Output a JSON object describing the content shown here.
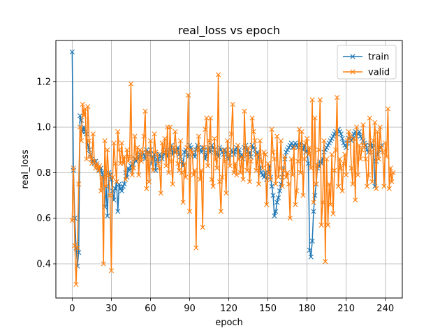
{
  "chart_data": {
    "type": "line",
    "title": "real_loss vs epoch",
    "xlabel": "epoch",
    "ylabel": "real_loss",
    "xlim": [
      -12.5,
      253
    ],
    "ylim": [
      0.25,
      1.38
    ],
    "xticks": [
      0,
      30,
      60,
      90,
      120,
      150,
      180,
      210,
      240
    ],
    "yticks": [
      0.4,
      0.6,
      0.8,
      1.0,
      1.2
    ],
    "ytick_labels": [
      "0.4",
      "0.6",
      "0.8",
      "1.0",
      "1.2"
    ],
    "grid": true,
    "legend_position": "top-right",
    "marker": "x",
    "series": [
      {
        "name": "train",
        "color": "#1f77b4",
        "values": [
          1.33,
          0.81,
          0.6,
          0.47,
          0.39,
          0.45,
          1.05,
          1.03,
          0.98,
          1.0,
          0.98,
          0.97,
          0.92,
          0.9,
          0.88,
          0.86,
          0.85,
          0.84,
          0.85,
          0.83,
          0.82,
          0.81,
          0.82,
          0.8,
          0.78,
          0.65,
          0.74,
          0.61,
          0.8,
          0.79,
          0.77,
          0.72,
          0.68,
          0.73,
          0.76,
          0.63,
          0.75,
          0.73,
          0.72,
          0.74,
          0.75,
          0.8,
          0.78,
          0.82,
          0.81,
          0.83,
          0.84,
          0.82,
          0.86,
          0.85,
          0.87,
          0.86,
          0.88,
          0.87,
          0.89,
          0.88,
          0.86,
          0.9,
          0.88,
          0.89,
          0.9,
          0.84,
          0.87,
          0.88,
          0.81,
          0.86,
          0.85,
          0.88,
          0.87,
          0.86,
          0.89,
          0.88,
          0.9,
          0.87,
          0.89,
          0.9,
          0.92,
          0.88,
          0.91,
          0.89,
          0.9,
          0.91,
          0.88,
          0.87,
          0.85,
          0.83,
          0.89,
          0.9,
          0.88,
          0.87,
          0.92,
          0.91,
          0.89,
          0.88,
          0.87,
          0.9,
          0.92,
          0.91,
          0.9,
          0.89,
          0.91,
          0.9,
          0.86,
          0.88,
          0.9,
          0.91,
          0.89,
          0.92,
          0.91,
          0.9,
          0.88,
          0.89,
          0.87,
          0.91,
          0.9,
          0.89,
          0.88,
          0.9,
          0.89,
          0.87,
          0.86,
          0.88,
          0.9,
          0.89,
          0.88,
          0.9,
          0.91,
          0.89,
          0.9,
          0.87,
          0.88,
          0.86,
          0.91,
          0.92,
          0.9,
          0.88,
          0.89,
          0.87,
          0.92,
          0.91,
          0.9,
          0.88,
          0.89,
          0.87,
          0.82,
          0.8,
          0.79,
          0.78,
          0.8,
          0.77,
          0.8,
          0.83,
          0.78,
          0.74,
          0.7,
          0.61,
          0.63,
          0.67,
          0.69,
          0.72,
          0.75,
          0.78,
          0.82,
          0.86,
          0.89,
          0.9,
          0.91,
          0.92,
          0.93,
          0.91,
          0.92,
          0.93,
          0.92,
          0.91,
          0.92,
          0.93,
          0.91,
          0.9,
          0.92,
          0.89,
          0.9,
          0.84,
          0.46,
          0.43,
          0.5,
          0.63,
          0.7,
          0.75,
          0.82,
          0.83,
          0.85,
          0.84,
          0.86,
          0.89,
          0.9,
          0.91,
          0.92,
          0.93,
          0.94,
          0.95,
          0.96,
          0.97,
          0.98,
          0.97,
          0.99,
          0.98,
          0.97,
          0.95,
          0.93,
          0.92,
          0.91,
          0.93,
          0.95,
          0.96,
          0.94,
          0.95,
          0.97,
          0.98,
          0.96,
          0.97,
          0.98,
          0.96,
          0.95,
          0.94,
          0.93,
          0.92,
          0.9,
          0.89,
          0.92,
          0.93,
          0.91,
          0.92,
          0.74,
          0.85,
          0.88,
          0.9,
          0.91,
          0.92
        ]
      },
      {
        "name": "valid",
        "color": "#ff7f0e",
        "values": [
          0.59,
          0.82,
          0.48,
          0.31,
          0.47,
          0.75,
          1.0,
          0.94,
          1.1,
          1.05,
          1.08,
          0.86,
          1.09,
          0.94,
          0.87,
          0.84,
          0.97,
          0.85,
          0.82,
          0.84,
          0.81,
          0.83,
          0.72,
          0.78,
          0.4,
          0.94,
          0.74,
          0.9,
          0.79,
          0.7,
          0.37,
          0.78,
          0.93,
          0.84,
          0.76,
          0.98,
          0.9,
          0.84,
          0.93,
          0.84,
          0.87,
          0.77,
          0.9,
          0.85,
          0.87,
          1.19,
          0.79,
          0.82,
          0.96,
          0.86,
          0.91,
          0.79,
          0.9,
          0.85,
          0.89,
          0.96,
          1.07,
          0.73,
          0.89,
          0.76,
          0.94,
          0.86,
          0.81,
          0.97,
          0.89,
          0.88,
          0.84,
          0.82,
          0.71,
          0.93,
          0.89,
          0.95,
          0.83,
          1.0,
          0.8,
          1.0,
          0.85,
          0.75,
          0.91,
          0.98,
          0.89,
          0.84,
          0.81,
          0.94,
          0.8,
          0.67,
          0.84,
          0.78,
          0.91,
          1.14,
          0.63,
          0.9,
          0.89,
          0.79,
          0.81,
          0.47,
          0.9,
          0.96,
          0.77,
          0.81,
          0.56,
          0.91,
          0.99,
          1.04,
          0.83,
          0.94,
          1.04,
          0.77,
          0.74,
          0.95,
          0.86,
          0.82,
          1.23,
          0.76,
          0.63,
          0.78,
          0.9,
          0.85,
          0.71,
          0.94,
          0.88,
          0.83,
          0.97,
          1.1,
          0.8,
          0.84,
          0.79,
          0.92,
          0.86,
          0.8,
          0.87,
          0.77,
          1.07,
          0.88,
          0.81,
          0.91,
          0.76,
          0.85,
          1.04,
          0.98,
          0.94,
          0.81,
          0.88,
          0.75,
          0.94,
          0.85,
          0.82,
          0.89,
          0.88,
          0.66,
          0.84,
          0.8,
          0.77,
          0.99,
          0.89,
          0.86,
          0.75,
          0.96,
          0.78,
          0.82,
          0.94,
          0.74,
          0.81,
          0.87,
          0.78,
          0.8,
          0.75,
          0.6,
          0.86,
          0.79,
          0.91,
          0.66,
          0.72,
          0.85,
          0.99,
          0.8,
          0.98,
          0.7,
          0.86,
          0.93,
          0.95,
          0.88,
          0.91,
          0.82,
          1.12,
          0.67,
          1.04,
          0.75,
          0.83,
          0.9,
          1.12,
          0.57,
          0.67,
          0.94,
          0.41,
          0.86,
          0.57,
          0.75,
          0.66,
          0.88,
          0.62,
          0.81,
          0.9,
          1.13,
          0.74,
          0.86,
          0.82,
          0.72,
          0.84,
          0.88,
          0.79,
          0.94,
          0.98,
          0.96,
          0.82,
          0.75,
          0.95,
          0.68,
          1.0,
          0.79,
          0.92,
          0.86,
          0.9,
          1.01,
          0.92,
          0.86,
          0.74,
          0.79,
          1.04,
          0.89,
          0.76,
          0.94,
          1.02,
          0.73,
          0.98,
          0.86,
          1.0,
          0.91,
          0.89,
          0.74,
          0.93,
          0.87,
          1.08,
          0.73,
          0.82,
          0.76,
          0.8
        ]
      }
    ]
  }
}
